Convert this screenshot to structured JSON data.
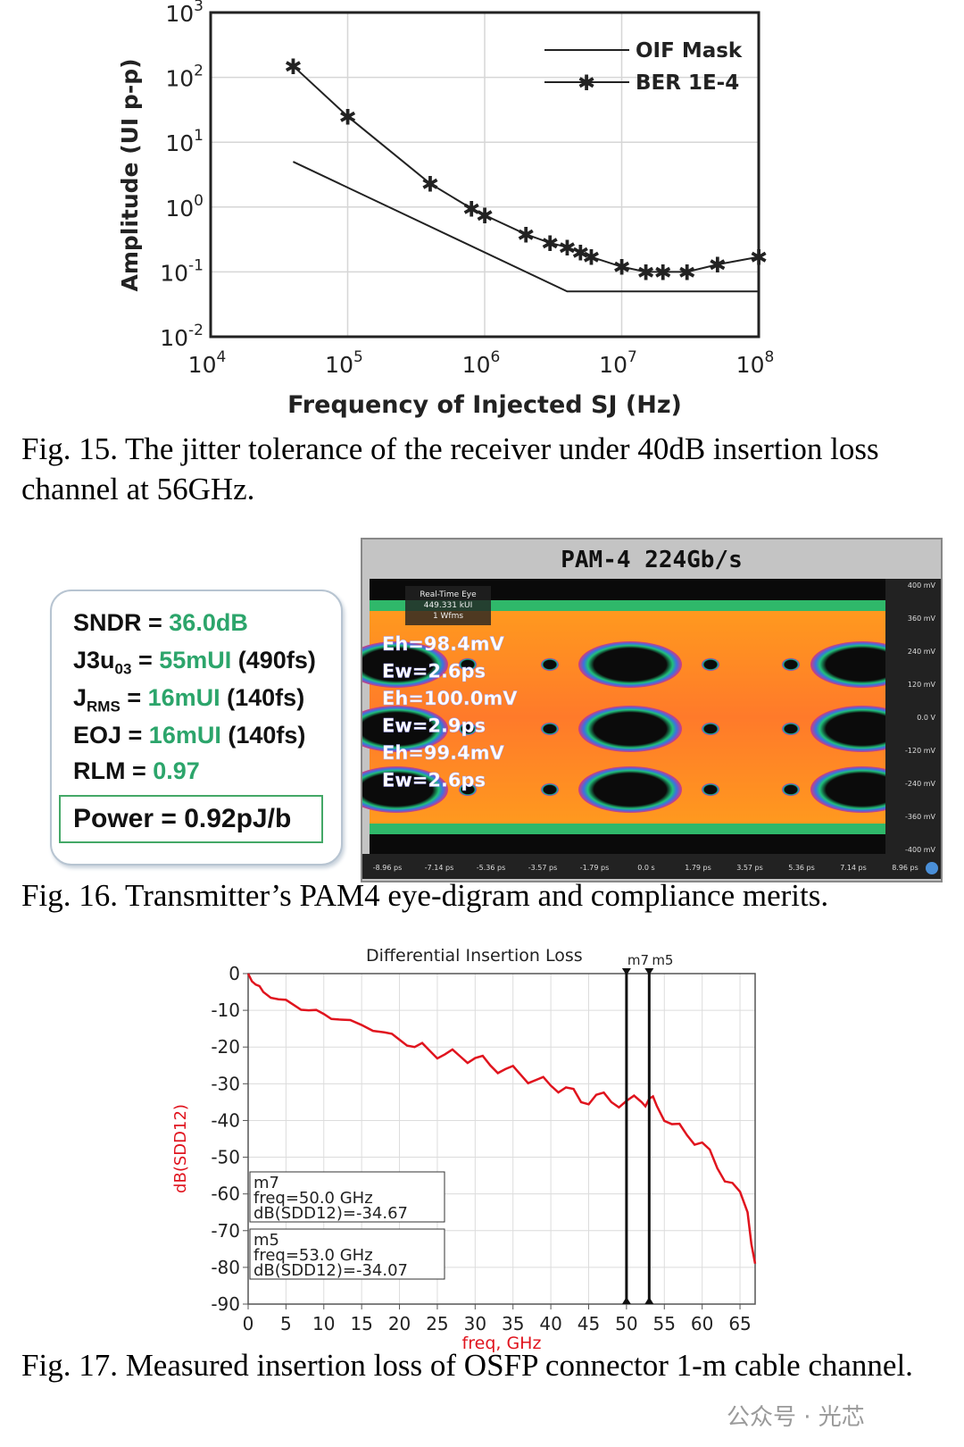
{
  "fig15": {
    "caption": "Fig. 15. The jitter tolerance of the receiver under 40dB insertion loss channel at 56GHz."
  },
  "fig16": {
    "caption": "Fig. 16. Transmitter’s PAM4 eye-digram and compliance merits.",
    "merits": {
      "sndr_label": "SNDR = ",
      "sndr_value": "36.0dB",
      "j3u_label": "J3u",
      "j3u_sub": "03",
      "j3u_eq": " = ",
      "j3u_value": "55mUI",
      "j3u_extra": " (490fs)",
      "jrms_label": "J",
      "jrms_sub": "RMS",
      "jrms_eq": " = ",
      "jrms_value": "16mUI",
      "jrms_extra": " (140fs)",
      "eoj_label": "EOJ = ",
      "eoj_value": "16mUI",
      "eoj_extra": " (140fs)",
      "rlm_label": "RLM = ",
      "rlm_value": "0.97",
      "power": "Power = 0.92pJ/b"
    },
    "eye": {
      "title": "PAM-4 224Gb/s",
      "info": [
        "Real-Time Eye",
        "449.331 kUI",
        "1 Wfms"
      ],
      "measurements": [
        "Eh=98.4mV",
        "Ew=2.6ps",
        "Eh=100.0mV",
        "Ew=2.9ps",
        "Eh=99.4mV",
        "Ew=2.6ps"
      ],
      "y_ticks": [
        "400 mV",
        "360 mV",
        "240 mV",
        "120 mV",
        "0.0 V",
        "-120 mV",
        "-240 mV",
        "-360 mV",
        "-400 mV"
      ],
      "x_ticks": [
        "-8.96 ps",
        "-7.14 ps",
        "-5.36 ps",
        "-3.57 ps",
        "-1.79 ps",
        "0.0 s",
        "1.79 ps",
        "3.57 ps",
        "5.36 ps",
        "7.14 ps",
        "8.96 ps"
      ]
    }
  },
  "fig17": {
    "caption": "Fig. 17. Measured insertion loss of OSFP connector 1-m cable channel.",
    "markers": [
      {
        "name": "m7",
        "freq": "freq=50.0 GHz",
        "value": "dB(SDD12)=-34.67"
      },
      {
        "name": "m5",
        "freq": "freq=53.0 GHz",
        "value": "dB(SDD12)=-34.07"
      }
    ]
  },
  "watermark": "公众号 · 光芯",
  "chart_data": [
    {
      "type": "line",
      "title": "",
      "xlabel": "Frequency of Injected SJ (Hz)",
      "ylabel": "Amplitude (UI p-p)",
      "xscale": "log",
      "yscale": "log",
      "xlim": [
        10000,
        100000000
      ],
      "ylim": [
        0.01,
        1000
      ],
      "x_ticks": [
        "10^4",
        "10^5",
        "10^6",
        "10^7",
        "10^8"
      ],
      "y_ticks": [
        "10^-2",
        "10^-1",
        "10^0",
        "10^1",
        "10^2",
        "10^3"
      ],
      "grid": true,
      "legend_position": "top-right",
      "series": [
        {
          "name": "OIF Mask",
          "x": [
            40000,
            4000000,
            100000000
          ],
          "y": [
            5,
            0.05,
            0.05
          ]
        },
        {
          "name": "BER 1E-4",
          "marker": "star",
          "x": [
            40000,
            100000,
            400000,
            800000,
            1000000,
            2000000,
            3000000,
            4000000,
            5000000,
            6000000,
            10000000,
            15000000,
            20000000,
            30000000,
            50000000,
            100000000
          ],
          "y": [
            150,
            25,
            2.3,
            0.95,
            0.75,
            0.38,
            0.28,
            0.24,
            0.2,
            0.17,
            0.12,
            0.1,
            0.1,
            0.1,
            0.13,
            0.17
          ]
        }
      ]
    },
    {
      "type": "line",
      "title": "Differential Insertion Loss",
      "xlabel": "freq, GHz",
      "ylabel": "dB(SDD12)",
      "xlim": [
        0,
        67
      ],
      "ylim": [
        -90,
        0
      ],
      "x_ticks": [
        0,
        5,
        10,
        15,
        20,
        25,
        30,
        35,
        40,
        45,
        50,
        55,
        60,
        65
      ],
      "y_ticks": [
        0,
        -10,
        -20,
        -30,
        -40,
        -50,
        -60,
        -70,
        -80,
        -90
      ],
      "grid": true,
      "color": "#e0141e",
      "series": [
        {
          "x": [
            0,
            1,
            2,
            4,
            6,
            8,
            10,
            12,
            15,
            18,
            20,
            22,
            24,
            26,
            28,
            30,
            32,
            34,
            36,
            38,
            40,
            42,
            44,
            46,
            48,
            50,
            52,
            53,
            54,
            56,
            58,
            60,
            62,
            64,
            66,
            67
          ],
          "y": [
            0,
            -3,
            -5,
            -7,
            -8.5,
            -10,
            -11,
            -12.5,
            -14,
            -16,
            -18,
            -20,
            -21,
            -22,
            -22.5,
            -23,
            -25,
            -26,
            -27.5,
            -29,
            -30.5,
            -31,
            -35,
            -33,
            -35,
            -34.67,
            -35,
            -34.07,
            -36,
            -41,
            -44,
            -46,
            -53,
            -57,
            -65,
            -79
          ]
        }
      ],
      "markers": [
        {
          "name": "m7",
          "x": 50.0,
          "y": -34.67
        },
        {
          "name": "m5",
          "x": 53.0,
          "y": -34.07
        }
      ]
    }
  ]
}
